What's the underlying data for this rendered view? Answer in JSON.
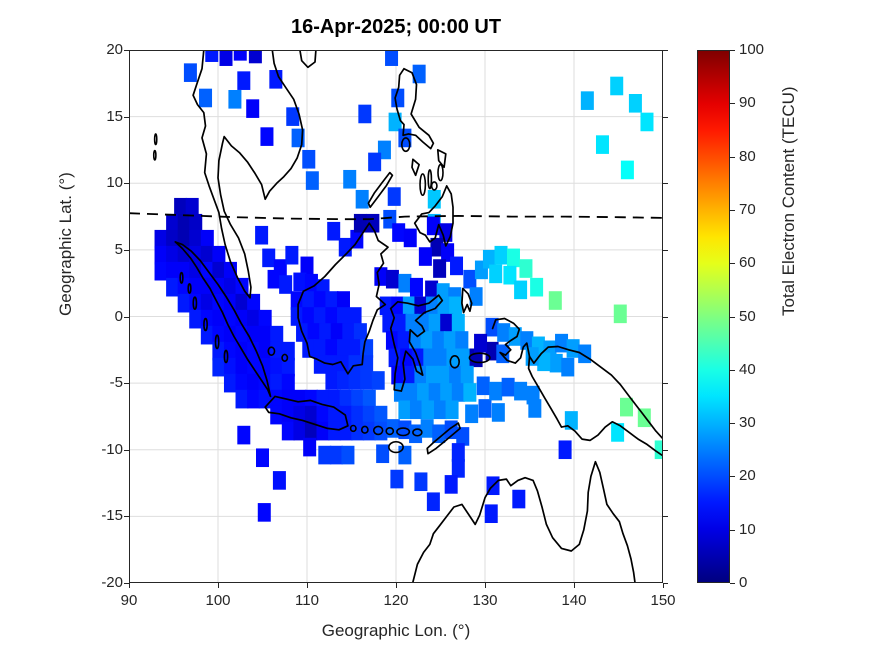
{
  "figure": {
    "title": "16-Apr-2025; 00:00 UT"
  },
  "axes": {
    "xlabel": "Geographic Lon. (°)",
    "ylabel": "Geographic Lat. (°)",
    "x_ticks": [
      90,
      100,
      110,
      120,
      130,
      140,
      150
    ],
    "y_ticks": [
      -20,
      -15,
      -10,
      -5,
      0,
      5,
      10,
      15,
      20
    ],
    "grid_color": "#dedede",
    "frame_color": "#262626"
  },
  "colorbar": {
    "label": "Total Electron Content (TECU)",
    "ticks": [
      0,
      10,
      20,
      30,
      40,
      50,
      60,
      70,
      80,
      90,
      100
    ],
    "min": 0,
    "max": 100,
    "colormap": "jet"
  },
  "chart_data": {
    "type": "scatter",
    "marker": "square",
    "title": "16-Apr-2025; 00:00 UT",
    "xlabel": "Geographic Lon. (°)",
    "ylabel": "Geographic Lat. (°)",
    "xlim": [
      90,
      150
    ],
    "ylim": [
      -20,
      20
    ],
    "grid": true,
    "colorbar_label": "Total Electron Content (TECU)",
    "clim": [
      0,
      100
    ],
    "colormap": "jet",
    "dashed_line": {
      "name": "magnetic-dip-equator",
      "points": [
        [
          90,
          7.75
        ],
        [
          96,
          7.6
        ],
        [
          102,
          7.45
        ],
        [
          108,
          7.35
        ],
        [
          114,
          7.3
        ],
        [
          117,
          7.3
        ],
        [
          121,
          7.5
        ],
        [
          127,
          7.55
        ],
        [
          133,
          7.5
        ],
        [
          139,
          7.5
        ],
        [
          145,
          7.45
        ],
        [
          150,
          7.4
        ]
      ]
    },
    "points_format": [
      "lon",
      "lat",
      "tec"
    ],
    "points": [
      [
        96.9,
        18.3,
        20
      ],
      [
        99.3,
        19.8,
        15
      ],
      [
        100.9,
        19.5,
        10
      ],
      [
        102.5,
        19.9,
        12
      ],
      [
        104.2,
        19.7,
        8
      ],
      [
        102.9,
        17.7,
        15
      ],
      [
        98.6,
        16.4,
        22
      ],
      [
        101.9,
        16.3,
        25
      ],
      [
        103.9,
        15.6,
        12
      ],
      [
        106.5,
        17.8,
        15
      ],
      [
        108.4,
        15.0,
        18
      ],
      [
        105.5,
        13.5,
        13
      ],
      [
        109.0,
        13.4,
        22
      ],
      [
        110.2,
        11.8,
        20
      ],
      [
        110.6,
        10.2,
        22
      ],
      [
        119.5,
        19.5,
        20
      ],
      [
        122.6,
        18.2,
        22
      ],
      [
        116.5,
        15.2,
        18
      ],
      [
        120.2,
        16.4,
        20
      ],
      [
        119.9,
        14.6,
        30
      ],
      [
        121.0,
        13.4,
        20
      ],
      [
        118.7,
        12.5,
        25
      ],
      [
        117.6,
        11.6,
        18
      ],
      [
        114.8,
        10.3,
        25
      ],
      [
        116.2,
        8.8,
        25
      ],
      [
        119.8,
        9.0,
        18
      ],
      [
        124.3,
        8.8,
        32
      ],
      [
        124.3,
        7.0,
        30
      ],
      [
        141.5,
        16.2,
        30
      ],
      [
        144.8,
        17.3,
        33
      ],
      [
        146.9,
        16.0,
        33
      ],
      [
        148.2,
        14.6,
        35
      ],
      [
        143.2,
        12.9,
        35
      ],
      [
        146.0,
        11.0,
        38
      ],
      [
        95.8,
        8.2,
        6
      ],
      [
        97.1,
        8.2,
        8
      ],
      [
        94.9,
        7.0,
        8
      ],
      [
        96.2,
        7.0,
        5
      ],
      [
        97.5,
        7.0,
        7
      ],
      [
        93.6,
        5.8,
        10
      ],
      [
        94.9,
        5.8,
        7
      ],
      [
        96.2,
        5.8,
        5
      ],
      [
        97.5,
        5.8,
        8
      ],
      [
        98.8,
        5.8,
        12
      ],
      [
        93.6,
        4.6,
        12
      ],
      [
        94.9,
        4.6,
        10
      ],
      [
        96.2,
        4.6,
        8
      ],
      [
        97.5,
        4.6,
        10
      ],
      [
        98.8,
        4.6,
        8
      ],
      [
        100.1,
        4.6,
        12
      ],
      [
        93.6,
        3.4,
        13
      ],
      [
        94.9,
        3.4,
        12
      ],
      [
        96.2,
        3.4,
        12
      ],
      [
        97.5,
        3.4,
        10
      ],
      [
        98.8,
        3.4,
        13
      ],
      [
        100.1,
        3.4,
        8
      ],
      [
        101.4,
        3.4,
        12
      ],
      [
        94.9,
        2.2,
        15
      ],
      [
        96.2,
        2.2,
        13
      ],
      [
        97.5,
        2.2,
        12
      ],
      [
        98.8,
        2.2,
        12
      ],
      [
        100.1,
        2.2,
        12
      ],
      [
        101.4,
        2.2,
        10
      ],
      [
        102.7,
        2.2,
        13
      ],
      [
        96.2,
        1.0,
        15
      ],
      [
        97.5,
        1.0,
        13
      ],
      [
        98.8,
        1.0,
        10
      ],
      [
        100.1,
        1.0,
        13
      ],
      [
        101.4,
        1.0,
        12
      ],
      [
        102.7,
        1.0,
        8
      ],
      [
        104.0,
        1.0,
        13
      ],
      [
        97.5,
        -0.2,
        15
      ],
      [
        98.8,
        -0.2,
        13
      ],
      [
        100.1,
        -0.2,
        12
      ],
      [
        101.4,
        -0.2,
        13
      ],
      [
        102.7,
        -0.2,
        12
      ],
      [
        104.0,
        -0.2,
        10
      ],
      [
        105.3,
        -0.2,
        13
      ],
      [
        98.8,
        -1.4,
        15
      ],
      [
        100.1,
        -1.4,
        13
      ],
      [
        101.4,
        -1.4,
        12
      ],
      [
        102.7,
        -1.4,
        13
      ],
      [
        104.0,
        -1.4,
        12
      ],
      [
        105.3,
        -1.4,
        12
      ],
      [
        106.6,
        -1.4,
        15
      ],
      [
        100.1,
        -2.6,
        15
      ],
      [
        101.4,
        -2.6,
        13
      ],
      [
        102.7,
        -2.6,
        12
      ],
      [
        104.0,
        -2.6,
        13
      ],
      [
        105.3,
        -2.6,
        12
      ],
      [
        106.6,
        -2.6,
        15
      ],
      [
        107.9,
        -2.6,
        15
      ],
      [
        100.1,
        -3.8,
        16
      ],
      [
        101.4,
        -3.8,
        14
      ],
      [
        102.7,
        -3.8,
        12
      ],
      [
        104.0,
        -3.8,
        13
      ],
      [
        105.3,
        -3.8,
        13
      ],
      [
        106.6,
        -3.8,
        14
      ],
      [
        107.9,
        -3.8,
        15
      ],
      [
        101.4,
        -5.0,
        15
      ],
      [
        102.7,
        -5.0,
        13
      ],
      [
        104.0,
        -5.0,
        12
      ],
      [
        105.3,
        -5.0,
        13
      ],
      [
        106.6,
        -5.0,
        15
      ],
      [
        107.9,
        -5.0,
        13
      ],
      [
        102.7,
        -6.2,
        15
      ],
      [
        104.0,
        -6.2,
        13
      ],
      [
        105.3,
        -6.2,
        14
      ],
      [
        106.6,
        -6.2,
        13
      ],
      [
        107.9,
        -6.2,
        12
      ],
      [
        104.9,
        6.1,
        15
      ],
      [
        105.7,
        4.4,
        15
      ],
      [
        107.0,
        3.6,
        13
      ],
      [
        108.3,
        4.6,
        15
      ],
      [
        106.3,
        2.8,
        13
      ],
      [
        107.6,
        2.4,
        15
      ],
      [
        110.0,
        3.8,
        12
      ],
      [
        109.2,
        2.6,
        14
      ],
      [
        110.5,
        2.5,
        13
      ],
      [
        111.8,
        2.1,
        15
      ],
      [
        114.3,
        5.2,
        15
      ],
      [
        115.6,
        5.8,
        13
      ],
      [
        113.0,
        6.4,
        15
      ],
      [
        108.9,
        1.2,
        13
      ],
      [
        110.2,
        1.2,
        15
      ],
      [
        111.5,
        1.2,
        13
      ],
      [
        112.8,
        1.2,
        15
      ],
      [
        114.1,
        1.2,
        12
      ],
      [
        108.9,
        0.0,
        15
      ],
      [
        110.2,
        0.0,
        13
      ],
      [
        111.5,
        0.0,
        15
      ],
      [
        112.8,
        0.0,
        13
      ],
      [
        114.1,
        0.0,
        15
      ],
      [
        115.4,
        0.0,
        15
      ],
      [
        109.5,
        -1.2,
        15
      ],
      [
        110.8,
        -1.2,
        13
      ],
      [
        112.1,
        -1.2,
        15
      ],
      [
        113.4,
        -1.2,
        12
      ],
      [
        114.7,
        -1.2,
        15
      ],
      [
        116.0,
        -1.2,
        17
      ],
      [
        110.2,
        -2.4,
        15
      ],
      [
        111.5,
        -2.4,
        15
      ],
      [
        112.8,
        -2.4,
        13
      ],
      [
        114.1,
        -2.4,
        15
      ],
      [
        115.4,
        -2.4,
        15
      ],
      [
        116.7,
        -2.4,
        19
      ],
      [
        111.5,
        -3.6,
        15
      ],
      [
        112.8,
        -3.6,
        15
      ],
      [
        114.1,
        -3.6,
        15
      ],
      [
        115.4,
        -3.6,
        17
      ],
      [
        116.7,
        -3.6,
        18
      ],
      [
        112.8,
        -4.8,
        15
      ],
      [
        114.1,
        -4.8,
        16
      ],
      [
        115.4,
        -4.8,
        17
      ],
      [
        116.7,
        -4.8,
        18
      ],
      [
        118.0,
        -4.8,
        19
      ],
      [
        119.3,
        7.3,
        20
      ],
      [
        120.3,
        6.3,
        13
      ],
      [
        121.6,
        5.9,
        12
      ],
      [
        116.0,
        7.0,
        5
      ],
      [
        117.4,
        7.0,
        6
      ],
      [
        124.2,
        6.8,
        12
      ],
      [
        125.6,
        6.3,
        10
      ],
      [
        124.6,
        5.2,
        5
      ],
      [
        125.8,
        4.8,
        12
      ],
      [
        126.8,
        3.8,
        15
      ],
      [
        124.9,
        3.6,
        6
      ],
      [
        123.3,
        4.5,
        12
      ],
      [
        109.2,
        -6.2,
        12
      ],
      [
        110.5,
        -6.2,
        13
      ],
      [
        111.8,
        -6.2,
        15
      ],
      [
        113.1,
        -6.2,
        15
      ],
      [
        114.4,
        -6.2,
        17
      ],
      [
        115.7,
        -6.2,
        19
      ],
      [
        117.0,
        -6.2,
        21
      ],
      [
        106.6,
        -7.4,
        13
      ],
      [
        107.9,
        -7.4,
        12
      ],
      [
        109.2,
        -7.4,
        10
      ],
      [
        110.5,
        -7.4,
        8
      ],
      [
        111.8,
        -7.4,
        13
      ],
      [
        113.1,
        -7.4,
        15
      ],
      [
        114.4,
        -7.4,
        15
      ],
      [
        115.7,
        -7.4,
        17
      ],
      [
        117.0,
        -7.4,
        19
      ],
      [
        118.3,
        -7.4,
        21
      ],
      [
        107.9,
        -8.6,
        13
      ],
      [
        109.2,
        -8.6,
        10
      ],
      [
        110.5,
        -8.6,
        6
      ],
      [
        111.8,
        -8.6,
        12
      ],
      [
        113.1,
        -8.6,
        15
      ],
      [
        114.4,
        -8.6,
        15
      ],
      [
        115.7,
        -8.6,
        17
      ],
      [
        117.0,
        -8.6,
        18
      ],
      [
        118.3,
        -8.6,
        20
      ],
      [
        102.9,
        -8.9,
        13
      ],
      [
        110.3,
        -9.8,
        12
      ],
      [
        112.0,
        -10.4,
        18
      ],
      [
        113.3,
        -10.4,
        18
      ],
      [
        114.6,
        -10.4,
        20
      ],
      [
        118.5,
        -10.3,
        20
      ],
      [
        105.0,
        -10.6,
        13
      ],
      [
        106.9,
        -12.3,
        14
      ],
      [
        105.2,
        -14.7,
        13
      ],
      [
        118.3,
        3.0,
        12
      ],
      [
        119.6,
        2.8,
        8
      ],
      [
        121.0,
        2.5,
        25
      ],
      [
        122.3,
        2.2,
        13
      ],
      [
        124.0,
        2.0,
        8
      ],
      [
        125.3,
        1.8,
        28
      ],
      [
        126.6,
        1.5,
        25
      ],
      [
        118.9,
        0.8,
        15
      ],
      [
        120.2,
        0.8,
        13
      ],
      [
        121.5,
        0.8,
        28
      ],
      [
        122.8,
        0.8,
        8
      ],
      [
        124.1,
        0.8,
        25
      ],
      [
        125.4,
        0.8,
        28
      ],
      [
        126.7,
        0.8,
        30
      ],
      [
        119.2,
        -0.5,
        15
      ],
      [
        120.5,
        -0.5,
        15
      ],
      [
        121.8,
        -0.5,
        25
      ],
      [
        123.1,
        -0.5,
        25
      ],
      [
        124.4,
        -0.5,
        28
      ],
      [
        125.7,
        -0.5,
        8
      ],
      [
        127.0,
        -0.5,
        30
      ],
      [
        119.6,
        -1.8,
        13
      ],
      [
        120.9,
        -1.8,
        15
      ],
      [
        122.2,
        -1.8,
        25
      ],
      [
        123.5,
        -1.8,
        28
      ],
      [
        124.8,
        -1.8,
        25
      ],
      [
        126.1,
        -1.8,
        28
      ],
      [
        127.4,
        -1.8,
        25
      ],
      [
        119.9,
        -3.1,
        15
      ],
      [
        121.2,
        -3.1,
        13
      ],
      [
        122.5,
        -3.1,
        15
      ],
      [
        123.8,
        -3.1,
        25
      ],
      [
        125.1,
        -3.1,
        25
      ],
      [
        126.4,
        -3.1,
        28
      ],
      [
        127.7,
        -3.1,
        28
      ],
      [
        129.0,
        -3.1,
        5
      ],
      [
        120.2,
        -4.4,
        13
      ],
      [
        121.5,
        -4.4,
        15
      ],
      [
        122.8,
        -4.4,
        25
      ],
      [
        124.1,
        -4.4,
        28
      ],
      [
        125.4,
        -4.4,
        28
      ],
      [
        126.7,
        -4.4,
        25
      ],
      [
        128.0,
        -4.4,
        28
      ],
      [
        120.5,
        -5.7,
        25
      ],
      [
        121.8,
        -5.7,
        25
      ],
      [
        123.1,
        -5.7,
        28
      ],
      [
        124.4,
        -5.7,
        25
      ],
      [
        125.7,
        -5.7,
        28
      ],
      [
        127.0,
        -5.7,
        25
      ],
      [
        128.3,
        -5.7,
        30
      ],
      [
        121.0,
        -7.0,
        28
      ],
      [
        122.3,
        -7.0,
        25
      ],
      [
        123.6,
        -7.0,
        28
      ],
      [
        125.0,
        -7.0,
        25
      ],
      [
        126.3,
        -7.0,
        28
      ],
      [
        128.3,
        2.8,
        20
      ],
      [
        129.6,
        3.5,
        28
      ],
      [
        130.5,
        4.3,
        30
      ],
      [
        131.8,
        4.6,
        33
      ],
      [
        133.2,
        4.4,
        40
      ],
      [
        131.2,
        3.2,
        33
      ],
      [
        132.8,
        3.1,
        35
      ],
      [
        134.6,
        3.6,
        42
      ],
      [
        135.8,
        2.2,
        40
      ],
      [
        137.9,
        1.2,
        48
      ],
      [
        134.0,
        2.0,
        33
      ],
      [
        129.0,
        1.5,
        25
      ],
      [
        145.2,
        0.2,
        48
      ],
      [
        130.8,
        -0.8,
        20
      ],
      [
        132.1,
        -1.2,
        25
      ],
      [
        133.4,
        -1.5,
        28
      ],
      [
        134.7,
        -1.8,
        25
      ],
      [
        136.0,
        -2.2,
        30
      ],
      [
        137.3,
        -2.5,
        28
      ],
      [
        138.6,
        -2.0,
        25
      ],
      [
        139.9,
        -2.4,
        28
      ],
      [
        141.2,
        -2.8,
        25
      ],
      [
        138.0,
        -3.5,
        28
      ],
      [
        139.3,
        -3.8,
        25
      ],
      [
        136.6,
        -3.4,
        30
      ],
      [
        135.3,
        -3.0,
        28
      ],
      [
        130.8,
        -2.6,
        5
      ],
      [
        132.0,
        -2.8,
        22
      ],
      [
        129.5,
        -2.0,
        8
      ],
      [
        128.5,
        -7.3,
        25
      ],
      [
        130.0,
        -6.9,
        22
      ],
      [
        131.5,
        -7.2,
        25
      ],
      [
        129.8,
        -5.2,
        22
      ],
      [
        131.2,
        -5.6,
        25
      ],
      [
        132.6,
        -5.3,
        22
      ],
      [
        134.0,
        -5.6,
        25
      ],
      [
        135.4,
        -5.9,
        25
      ],
      [
        135.6,
        -6.9,
        25
      ],
      [
        119.7,
        -8.4,
        22
      ],
      [
        121.0,
        -8.5,
        20
      ],
      [
        122.2,
        -8.8,
        22
      ],
      [
        123.5,
        -8.4,
        25
      ],
      [
        124.8,
        -8.8,
        22
      ],
      [
        126.2,
        -8.5,
        20
      ],
      [
        127.5,
        -9.0,
        20
      ],
      [
        121.0,
        -10.4,
        22
      ],
      [
        127.0,
        -10.2,
        16
      ],
      [
        127.0,
        -11.4,
        16
      ],
      [
        139.7,
        -7.8,
        30
      ],
      [
        139.0,
        -10.0,
        15
      ],
      [
        145.9,
        -6.8,
        48
      ],
      [
        147.9,
        -7.6,
        48
      ],
      [
        144.9,
        -8.7,
        35
      ],
      [
        149.8,
        -10.0,
        42
      ],
      [
        130.9,
        -12.7,
        15
      ],
      [
        133.8,
        -13.7,
        15
      ],
      [
        130.7,
        -14.8,
        15
      ],
      [
        122.8,
        -12.4,
        18
      ],
      [
        120.1,
        -12.2,
        18
      ],
      [
        124.2,
        -13.9,
        16
      ],
      [
        126.2,
        -12.6,
        15
      ]
    ]
  }
}
